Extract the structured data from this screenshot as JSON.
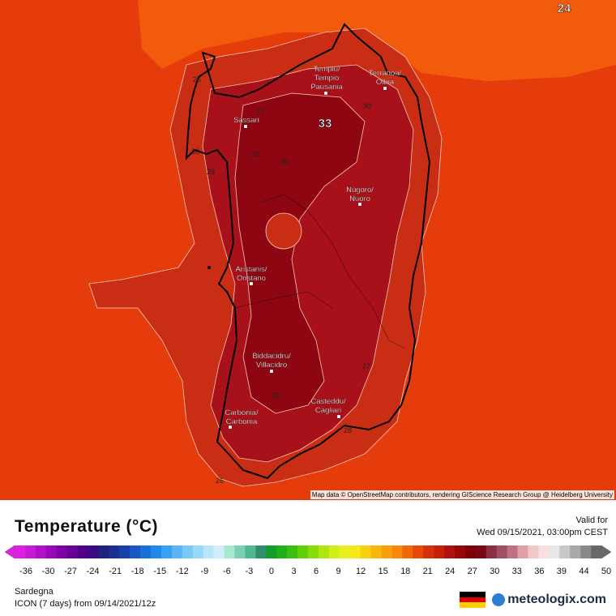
{
  "map": {
    "max_label": "33",
    "corner_label": "24",
    "contour_labels": [
      "27",
      "30",
      "30",
      "29",
      "30",
      "27",
      "30",
      "28",
      "26",
      "26",
      "30"
    ],
    "cities": [
      {
        "name": "Tempiu/\nTempio\nPausania"
      },
      {
        "name": "Terranoa/\nOlbia"
      },
      {
        "name": "Sassari"
      },
      {
        "name": "Nùgoro/\nNuoro"
      },
      {
        "name": "Aristanis/\nOristano"
      },
      {
        "name": "Biddacidru/\nVillacidro"
      },
      {
        "name": "Casteddu/\nCagliari"
      },
      {
        "name": "Carbònia/\nCarbonia"
      }
    ],
    "attribution": "Map data © OpenStreetMap contributors, rendering GIScience Research Group @ Heidelberg University",
    "colors": {
      "sea": "#e63c0c",
      "land_warm": "#c92d14",
      "land_hot": "#a8101a",
      "land_hottest": "#8e0612",
      "north_sea": "#f25a0c"
    }
  },
  "legend": {
    "title": "Temperature (°C)",
    "valid_label": "Valid for",
    "valid_time": "Wed 09/15/2021, 03:00pm CEST",
    "ticks": [
      "-36",
      "-30",
      "-27",
      "-24",
      "-21",
      "-18",
      "-15",
      "-12",
      "-9",
      "-6",
      "-3",
      "0",
      "3",
      "6",
      "9",
      "12",
      "15",
      "18",
      "21",
      "24",
      "27",
      "30",
      "33",
      "36",
      "39",
      "44",
      "50"
    ],
    "region": "Sardegna",
    "model": "ICON (7 days) from  09/14/2021/12z",
    "brand": "meteologix.com"
  }
}
